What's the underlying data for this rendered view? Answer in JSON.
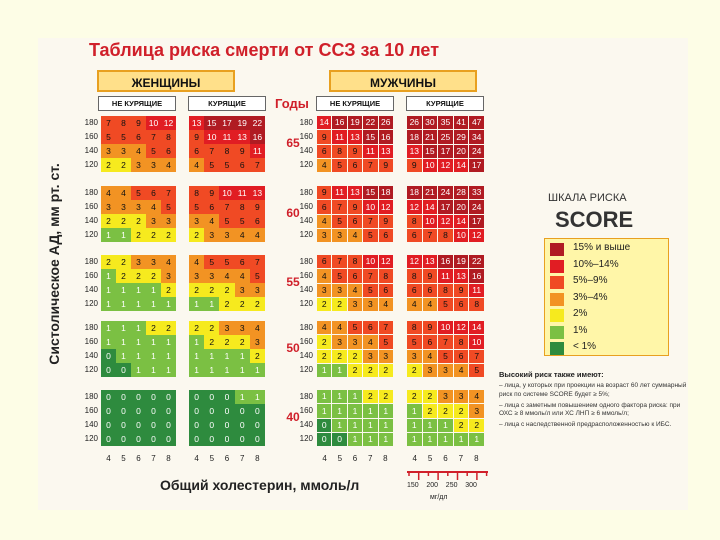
{
  "title": "Таблица риска смерти от ССЗ за 10 лет",
  "sex": {
    "women": "ЖЕНЩИНЫ",
    "men": "МУЖЧИНЫ"
  },
  "sub": {
    "nonsmoking": "НЕ КУРЯЩИЕ",
    "smoking": "КУРЯЩИЕ"
  },
  "years_label": "Годы",
  "y_axis_label": "Систолическое АД, мм рт. ст.",
  "x_axis_label": "Общий холестерин, ммоль/л",
  "bp_values": [
    "180",
    "160",
    "140",
    "120"
  ],
  "cholesterol_values": [
    "4",
    "5",
    "6",
    "7",
    "8"
  ],
  "cholesterol_mg": [
    "150",
    "200",
    "250",
    "300"
  ],
  "mg_unit": "мг/дл",
  "colors": {
    "c15": "#b01b22",
    "c10": "#e11d23",
    "c5": "#f04a24",
    "c3": "#f29323",
    "c2": "#f6ea1e",
    "c1": "#7bc043",
    "c0": "#2e8b3e"
  },
  "age_groups": [
    {
      "age": "65",
      "women_ns": [
        [
          7,
          8,
          9,
          10,
          12
        ],
        [
          5,
          5,
          6,
          7,
          8
        ],
        [
          3,
          3,
          4,
          5,
          6
        ],
        [
          2,
          2,
          3,
          3,
          4
        ]
      ],
      "women_s": [
        [
          13,
          15,
          17,
          19,
          22
        ],
        [
          9,
          10,
          11,
          13,
          16
        ],
        [
          6,
          7,
          8,
          9,
          11
        ],
        [
          4,
          5,
          5,
          6,
          7
        ]
      ],
      "men_ns": [
        [
          14,
          16,
          19,
          22,
          26
        ],
        [
          9,
          11,
          13,
          15,
          16
        ],
        [
          6,
          8,
          9,
          11,
          13
        ],
        [
          4,
          5,
          6,
          7,
          9
        ]
      ],
      "men_s": [
        [
          26,
          30,
          35,
          41,
          47
        ],
        [
          18,
          21,
          25,
          29,
          34
        ],
        [
          13,
          15,
          17,
          20,
          24
        ],
        [
          9,
          10,
          12,
          14,
          17
        ]
      ]
    },
    {
      "age": "60",
      "women_ns": [
        [
          4,
          4,
          5,
          6,
          7
        ],
        [
          3,
          3,
          3,
          4,
          5
        ],
        [
          2,
          2,
          2,
          3,
          3
        ],
        [
          1,
          1,
          2,
          2,
          2
        ]
      ],
      "women_s": [
        [
          8,
          9,
          10,
          11,
          13
        ],
        [
          5,
          6,
          7,
          8,
          9
        ],
        [
          3,
          4,
          5,
          5,
          6
        ],
        [
          2,
          3,
          3,
          4,
          4
        ]
      ],
      "men_ns": [
        [
          9,
          11,
          13,
          15,
          18
        ],
        [
          6,
          7,
          9,
          10,
          12
        ],
        [
          4,
          5,
          6,
          7,
          9
        ],
        [
          3,
          3,
          4,
          5,
          6
        ]
      ],
      "men_s": [
        [
          18,
          21,
          24,
          28,
          33
        ],
        [
          12,
          14,
          17,
          20,
          24
        ],
        [
          8,
          10,
          12,
          14,
          17
        ],
        [
          6,
          7,
          8,
          10,
          12
        ]
      ]
    },
    {
      "age": "55",
      "women_ns": [
        [
          2,
          2,
          3,
          3,
          4
        ],
        [
          1,
          2,
          2,
          2,
          3
        ],
        [
          1,
          1,
          1,
          1,
          2
        ],
        [
          1,
          1,
          1,
          1,
          1
        ]
      ],
      "women_s": [
        [
          4,
          5,
          5,
          6,
          7
        ],
        [
          3,
          3,
          4,
          4,
          5
        ],
        [
          2,
          2,
          2,
          3,
          3
        ],
        [
          1,
          1,
          2,
          2,
          2
        ]
      ],
      "men_ns": [
        [
          6,
          7,
          8,
          10,
          12
        ],
        [
          4,
          5,
          6,
          7,
          8
        ],
        [
          3,
          3,
          4,
          5,
          6
        ],
        [
          2,
          2,
          3,
          3,
          4
        ]
      ],
      "men_s": [
        [
          12,
          13,
          16,
          19,
          22
        ],
        [
          8,
          9,
          11,
          13,
          16
        ],
        [
          6,
          6,
          8,
          9,
          11
        ],
        [
          4,
          4,
          5,
          6,
          8
        ]
      ]
    },
    {
      "age": "50",
      "women_ns": [
        [
          1,
          1,
          1,
          2,
          2
        ],
        [
          1,
          1,
          1,
          1,
          1
        ],
        [
          0,
          1,
          1,
          1,
          1
        ],
        [
          0,
          0,
          1,
          1,
          1
        ]
      ],
      "women_s": [
        [
          2,
          2,
          3,
          3,
          4
        ],
        [
          1,
          2,
          2,
          2,
          3
        ],
        [
          1,
          1,
          1,
          1,
          2
        ],
        [
          1,
          1,
          1,
          1,
          1
        ]
      ],
      "men_ns": [
        [
          4,
          4,
          5,
          6,
          7
        ],
        [
          2,
          3,
          3,
          4,
          5
        ],
        [
          2,
          2,
          2,
          3,
          3
        ],
        [
          1,
          1,
          2,
          2,
          2
        ]
      ],
      "men_s": [
        [
          8,
          9,
          10,
          12,
          14
        ],
        [
          5,
          6,
          7,
          8,
          10
        ],
        [
          3,
          4,
          5,
          6,
          7
        ],
        [
          2,
          3,
          3,
          4,
          5
        ]
      ]
    },
    {
      "age": "40",
      "women_ns": [
        [
          0,
          0,
          0,
          0,
          0
        ],
        [
          0,
          0,
          0,
          0,
          0
        ],
        [
          0,
          0,
          0,
          0,
          0
        ],
        [
          0,
          0,
          0,
          0,
          0
        ]
      ],
      "women_s": [
        [
          0,
          0,
          0,
          1,
          1
        ],
        [
          0,
          0,
          0,
          0,
          0
        ],
        [
          0,
          0,
          0,
          0,
          0
        ],
        [
          0,
          0,
          0,
          0,
          0
        ]
      ],
      "men_ns": [
        [
          1,
          1,
          1,
          2,
          2
        ],
        [
          1,
          1,
          1,
          1,
          1
        ],
        [
          0,
          1,
          1,
          1,
          1
        ],
        [
          0,
          0,
          1,
          1,
          1
        ]
      ],
      "men_s": [
        [
          2,
          2,
          3,
          3,
          4
        ],
        [
          1,
          2,
          2,
          2,
          3
        ],
        [
          1,
          1,
          1,
          2,
          2
        ],
        [
          1,
          1,
          1,
          1,
          1
        ]
      ]
    }
  ],
  "legend": {
    "title": "ШКАЛА РИСКА",
    "score": "SCORE",
    "items": [
      {
        "label": "15% и выше",
        "color": "#b01b22"
      },
      {
        "label": "10%–14%",
        "color": "#e11d23"
      },
      {
        "label": "5%–9%",
        "color": "#f04a24"
      },
      {
        "label": "3%–4%",
        "color": "#f29323"
      },
      {
        "label": "2%",
        "color": "#f6ea1e"
      },
      {
        "label": "1%",
        "color": "#7bc043"
      },
      {
        "label": "< 1%",
        "color": "#2e8b3e"
      }
    ]
  },
  "notes": {
    "heading": "Высокий риск также имеют:",
    "items": [
      "– лица, у которых при проекции на возраст 60 лет суммарный риск по системе SCORE будет ≥ 5%;",
      "– лица с заметным повышением одного фактора риска: при ОХС ≥ 8 ммоль/л или ХС ЛНП ≥ 6 ммоль/л;",
      "– лица с наследственной предрасположенностью к ИБС."
    ]
  }
}
